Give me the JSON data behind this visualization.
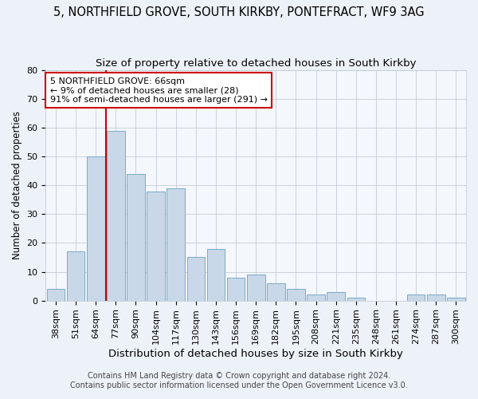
{
  "title1": "5, NORTHFIELD GROVE, SOUTH KIRKBY, PONTEFRACT, WF9 3AG",
  "title2": "Size of property relative to detached houses in South Kirkby",
  "xlabel": "Distribution of detached houses by size in South Kirkby",
  "ylabel": "Number of detached properties",
  "categories": [
    "38sqm",
    "51sqm",
    "64sqm",
    "77sqm",
    "90sqm",
    "104sqm",
    "117sqm",
    "130sqm",
    "143sqm",
    "156sqm",
    "169sqm",
    "182sqm",
    "195sqm",
    "208sqm",
    "221sqm",
    "235sqm",
    "248sqm",
    "261sqm",
    "274sqm",
    "287sqm",
    "300sqm"
  ],
  "values": [
    4,
    17,
    50,
    59,
    44,
    38,
    39,
    15,
    18,
    8,
    9,
    6,
    4,
    2,
    3,
    1,
    0,
    0,
    2,
    2,
    1
  ],
  "bar_color": "#c8d8e8",
  "bar_edge_color": "#7aaac8",
  "annotation_text": "5 NORTHFIELD GROVE: 66sqm\n← 9% of detached houses are smaller (28)\n91% of semi-detached houses are larger (291) →",
  "annotation_box_color": "#ffffff",
  "annotation_box_edge": "#cc0000",
  "ylim": [
    0,
    80
  ],
  "yticks": [
    0,
    10,
    20,
    30,
    40,
    50,
    60,
    70,
    80
  ],
  "footer1": "Contains HM Land Registry data © Crown copyright and database right 2024.",
  "footer2": "Contains public sector information licensed under the Open Government Licence v3.0.",
  "bg_color": "#edf2f9",
  "plot_bg_color": "#f4f7fc",
  "grid_color": "#c5cdd8",
  "vline_color": "#cc0000",
  "title_fontsize": 10.5,
  "subtitle_fontsize": 9.5,
  "xlabel_fontsize": 9.5,
  "ylabel_fontsize": 8.5,
  "tick_fontsize": 8,
  "annotation_fontsize": 8,
  "footer_fontsize": 7
}
